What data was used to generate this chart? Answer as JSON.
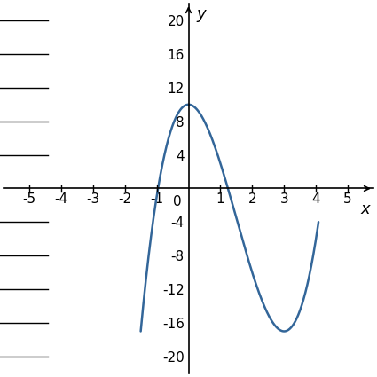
{
  "x_start": -1.5,
  "x_end": 4.08,
  "xlim": [
    -5.8,
    5.8
  ],
  "ylim": [
    -22,
    22
  ],
  "xticks": [
    -5,
    -4,
    -3,
    -2,
    -1,
    1,
    2,
    3,
    4,
    5
  ],
  "yticks": [
    -20,
    -16,
    -12,
    -8,
    -4,
    4,
    8,
    12,
    16,
    20
  ],
  "curve_color": "#336699",
  "curve_linewidth": 1.8,
  "background_color": "#ffffff",
  "xlabel": "x",
  "ylabel": "y",
  "axis_color": "#000000",
  "tick_color": "#000000",
  "font_size": 11,
  "poly_a": 2,
  "poly_b": -9,
  "poly_c": 0,
  "poly_d": 10
}
